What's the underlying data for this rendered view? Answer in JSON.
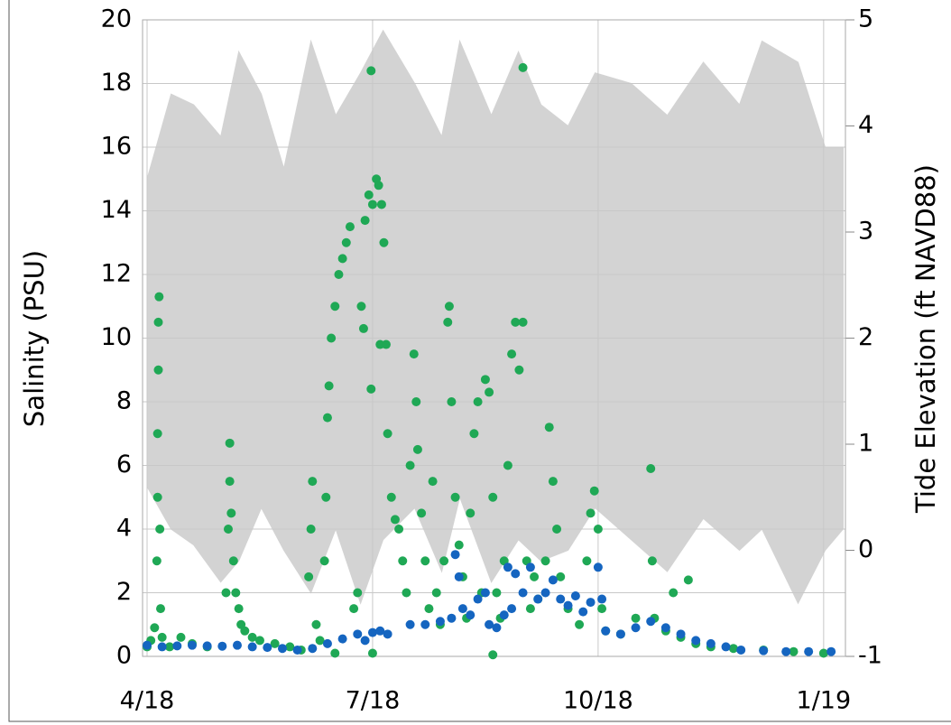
{
  "chart_data": {
    "type": "scatter",
    "ylabel": "Salinity (PSU)",
    "y2label": "Tide Elevation (ft NAVD88)",
    "xlim": [
      -0.06,
      9.29
    ],
    "xticks": [
      {
        "value": 0,
        "label": "4/18"
      },
      {
        "value": 3,
        "label": "7/18"
      },
      {
        "value": 6,
        "label": "10/18"
      },
      {
        "value": 9,
        "label": "1/19"
      }
    ],
    "ylim": [
      0,
      20
    ],
    "yticks": [
      0,
      2,
      4,
      6,
      8,
      10,
      12,
      14,
      16,
      18,
      20
    ],
    "y2lim": [
      -1,
      5
    ],
    "y2ticks": [
      {
        "value": -1,
        "label": "-1"
      },
      0,
      1,
      2,
      3,
      4,
      5
    ],
    "grid": true,
    "series": [
      {
        "color": "#d3d3d3",
        "axis": "y2",
        "x": [
          0.0,
          0.32,
          0.62,
          0.98,
          1.22,
          1.52,
          1.82,
          2.18,
          2.51,
          2.84,
          3.14,
          3.56,
          3.92,
          4.16,
          4.58,
          4.94,
          5.24,
          5.6,
          5.96,
          6.44,
          6.92,
          7.4,
          7.88,
          8.18,
          8.66,
          9.02,
          9.26
        ],
        "values": [
          3.5,
          4.3,
          4.2,
          3.9,
          4.7,
          4.3,
          3.6,
          4.8,
          4.1,
          4.5,
          4.9,
          4.4,
          3.9,
          4.8,
          4.1,
          4.7,
          4.2,
          4.0,
          4.5,
          4.4,
          4.1,
          4.6,
          4.2,
          4.8,
          4.6,
          3.8,
          3.8
        ],
        "low": [
          0.6,
          0.2,
          0.05,
          -0.3,
          -0.1,
          0.4,
          0.0,
          -0.4,
          0.2,
          -0.5,
          0.1,
          0.4,
          -0.2,
          0.5,
          -0.3,
          0.1,
          -0.1,
          0.0,
          0.4,
          0.1,
          -0.2,
          0.3,
          0.0,
          0.2,
          -0.5,
          0.0,
          0.2
        ]
      },
      {
        "color": "#1fa855",
        "x": [
          0.0,
          0.05,
          0.1,
          0.13,
          0.14,
          0.14,
          0.15,
          0.15,
          0.16,
          0.17,
          0.18,
          0.2,
          0.3,
          0.45,
          0.6,
          0.8,
          1.05,
          1.08,
          1.1,
          1.1,
          1.12,
          1.15,
          1.18,
          1.22,
          1.25,
          1.3,
          1.4,
          1.5,
          1.7,
          1.9,
          2.05,
          2.15,
          2.18,
          2.2,
          2.25,
          2.3,
          2.36,
          2.38,
          2.4,
          2.42,
          2.45,
          2.5,
          2.55,
          2.6,
          2.65,
          2.7,
          2.75,
          2.8,
          2.85,
          2.9,
          2.95,
          3.0,
          3.05,
          3.08,
          3.12,
          3.15,
          2.98,
          2.98,
          2.88,
          3.1,
          3.18,
          3.2,
          3.25,
          3.3,
          3.35,
          3.4,
          3.45,
          3.5,
          3.55,
          3.58,
          3.6,
          3.65,
          3.7,
          3.75,
          3.8,
          3.85,
          3.9,
          3.95,
          4.0,
          4.02,
          4.05,
          4.1,
          4.15,
          4.2,
          4.25,
          4.3,
          4.35,
          4.4,
          4.45,
          4.5,
          4.55,
          4.6,
          4.65,
          4.7,
          4.75,
          4.8,
          4.85,
          4.9,
          4.95,
          5.0,
          5.0,
          5.05,
          5.1,
          5.15,
          5.2,
          5.3,
          5.35,
          5.4,
          5.45,
          5.5,
          5.6,
          5.75,
          5.85,
          5.9,
          5.95,
          6.0,
          6.05,
          6.1,
          6.3,
          6.5,
          6.7,
          6.72,
          6.75,
          6.9,
          7.0,
          7.1,
          7.2,
          7.3,
          7.5,
          7.8,
          8.2,
          8.6,
          9.0,
          3.0,
          4.6,
          2.5
        ],
        "values": [
          0.3,
          0.5,
          0.9,
          3,
          5,
          7,
          9,
          10.5,
          11.3,
          4,
          1.5,
          0.6,
          0.3,
          0.6,
          0.4,
          0.3,
          2,
          4,
          5.5,
          6.7,
          4.5,
          3,
          2,
          1.5,
          1,
          0.8,
          0.6,
          0.5,
          0.4,
          0.3,
          0.2,
          2.5,
          4,
          5.5,
          1,
          0.5,
          3,
          5,
          7.5,
          8.5,
          10,
          11,
          12,
          12.5,
          13,
          13.5,
          1.5,
          2,
          11,
          13.7,
          14.5,
          14.2,
          15,
          14.8,
          14.2,
          13,
          18.4,
          8.4,
          10.3,
          9.8,
          9.8,
          7,
          5,
          4.3,
          4,
          3,
          2,
          6,
          9.5,
          8,
          6.5,
          4.5,
          3,
          1.5,
          5.5,
          2,
          1,
          3,
          10.5,
          11,
          8,
          5,
          3.5,
          2.5,
          1.2,
          4.5,
          7,
          8,
          2,
          8.7,
          8.3,
          5,
          2,
          1.2,
          3,
          6,
          9.5,
          10.5,
          9,
          10.5,
          18.5,
          3,
          1.5,
          2.5,
          1.8,
          3,
          7.2,
          5.5,
          4,
          2.5,
          1.5,
          1,
          3,
          4.5,
          5.2,
          4,
          1.5,
          0.8,
          0.7,
          1.2,
          5.9,
          3,
          1.2,
          0.8,
          2,
          0.6,
          2.4,
          0.4,
          0.3,
          0.25,
          0.2,
          0.15,
          0.1,
          0.1,
          0.05,
          0.1
        ]
      },
      {
        "color": "#1565c0",
        "x": [
          0.0,
          0.2,
          0.4,
          0.6,
          0.8,
          1.0,
          1.2,
          1.4,
          1.6,
          1.8,
          2.0,
          2.2,
          2.4,
          2.6,
          2.8,
          2.9,
          3.0,
          3.1,
          3.2,
          3.5,
          3.7,
          3.9,
          4.05,
          4.1,
          4.15,
          4.2,
          4.3,
          4.4,
          4.5,
          4.55,
          4.65,
          4.75,
          4.8,
          4.85,
          4.9,
          5.0,
          5.1,
          5.2,
          5.3,
          5.4,
          5.5,
          5.6,
          5.7,
          5.8,
          5.9,
          6.0,
          6.05,
          6.1,
          6.3,
          6.5,
          6.7,
          6.9,
          7.1,
          7.3,
          7.5,
          7.7,
          7.9,
          8.2,
          8.5,
          8.8,
          9.1
        ],
        "values": [
          0.35,
          0.3,
          0.33,
          0.35,
          0.33,
          0.32,
          0.35,
          0.3,
          0.28,
          0.25,
          0.2,
          0.25,
          0.4,
          0.55,
          0.7,
          0.5,
          0.75,
          0.8,
          0.7,
          1.0,
          1.0,
          1.1,
          1.2,
          3.2,
          2.5,
          1.5,
          1.3,
          1.8,
          2.0,
          1.0,
          0.9,
          1.3,
          2.8,
          1.5,
          2.6,
          2.0,
          2.8,
          1.8,
          2.0,
          2.4,
          1.8,
          1.6,
          1.9,
          1.4,
          1.7,
          2.8,
          1.8,
          0.8,
          0.7,
          0.9,
          1.1,
          0.9,
          0.7,
          0.5,
          0.4,
          0.3,
          0.2,
          0.18,
          0.15,
          0.15,
          0.15
        ]
      }
    ]
  }
}
